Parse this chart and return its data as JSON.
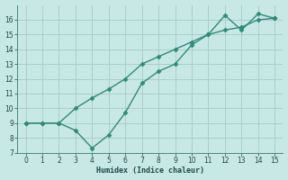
{
  "line1_x": [
    0,
    1,
    2,
    3,
    4,
    5,
    6,
    7,
    8,
    9,
    10,
    11,
    12,
    13,
    14,
    15
  ],
  "line1_y": [
    9.0,
    9.0,
    9.0,
    10.0,
    10.7,
    11.3,
    12.0,
    13.0,
    13.5,
    14.0,
    14.5,
    15.0,
    15.3,
    15.5,
    16.0,
    16.1
  ],
  "line2_x": [
    0,
    1,
    2,
    3,
    4,
    5,
    6,
    7,
    8,
    9,
    10,
    11,
    12,
    13,
    14,
    15
  ],
  "line2_y": [
    9.0,
    9.0,
    9.0,
    8.5,
    7.3,
    8.2,
    9.7,
    11.7,
    12.5,
    13.0,
    14.3,
    15.0,
    16.3,
    15.3,
    16.4,
    16.1
  ],
  "color": "#2e8b7a",
  "bg_color": "#c8e8e5",
  "grid_color": "#a8cfcc",
  "xlabel": "Humidex (Indice chaleur)",
  "xlim": [
    -0.5,
    15.5
  ],
  "ylim": [
    7,
    17
  ],
  "yticks": [
    7,
    8,
    9,
    10,
    11,
    12,
    13,
    14,
    15,
    16
  ],
  "xticks": [
    0,
    1,
    2,
    3,
    4,
    5,
    6,
    7,
    8,
    9,
    10,
    11,
    12,
    13,
    14,
    15
  ],
  "marker": "D",
  "markersize": 2.5,
  "linewidth": 1.0
}
